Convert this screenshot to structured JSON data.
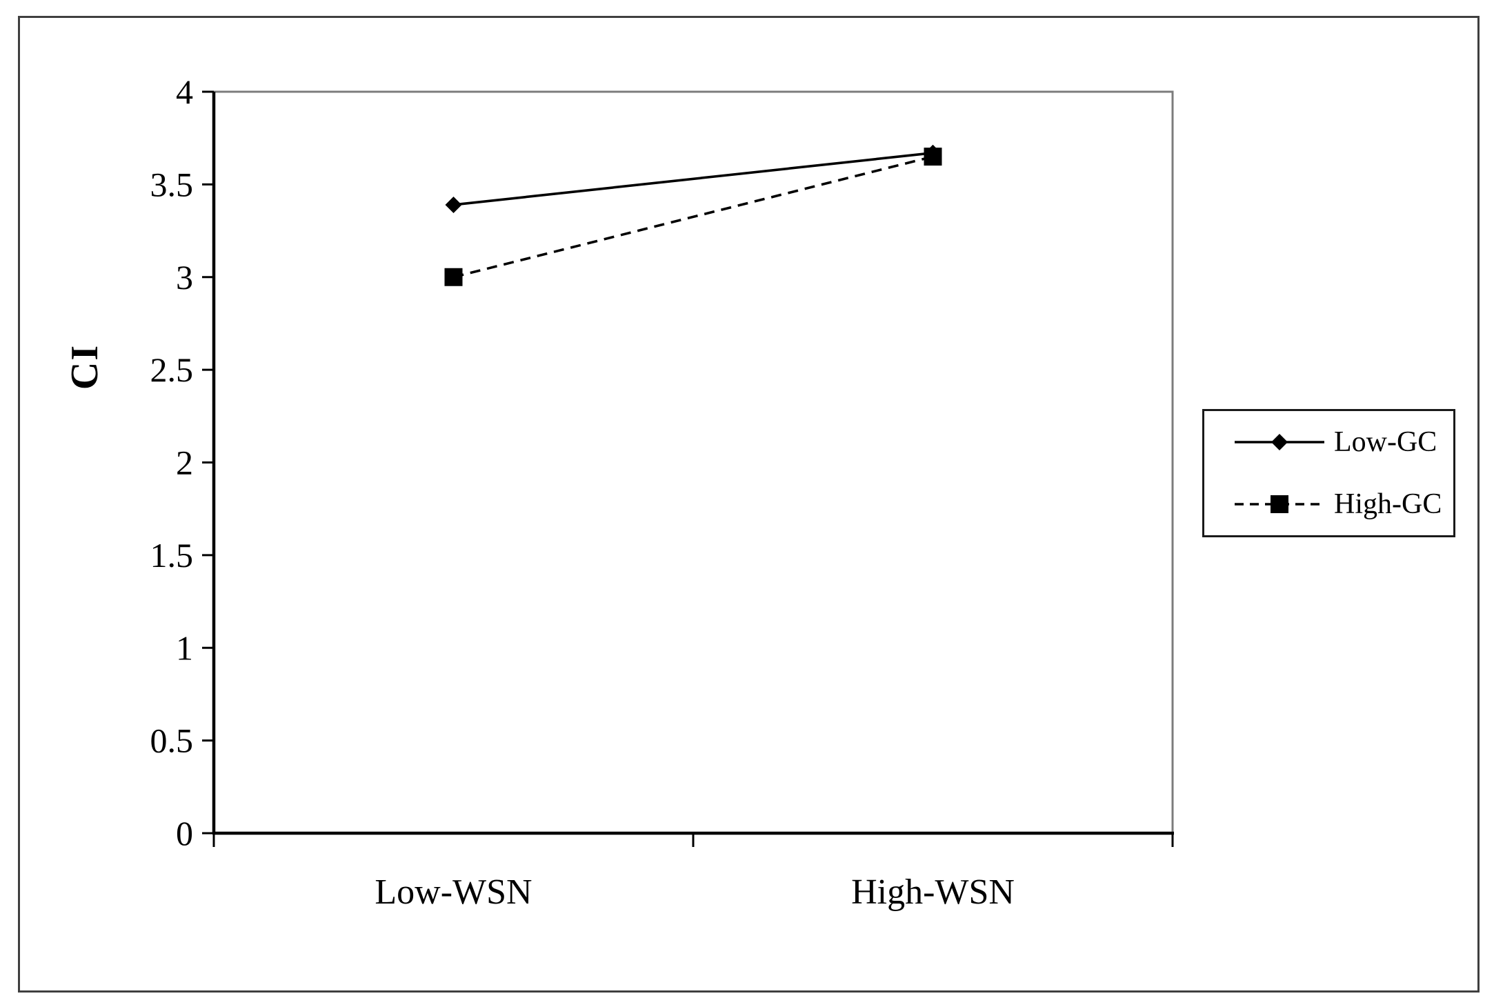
{
  "figure": {
    "background": "#ffffff",
    "frame_color": "#3f3f3f",
    "axis_color": "#000000",
    "plot_border_color": "#7c7c7c",
    "text_color": "#000000"
  },
  "chart_data": {
    "type": "line",
    "title": "",
    "categories": [
      "Low-WSN",
      "High-WSN"
    ],
    "series": [
      {
        "name": "Low-GC",
        "values": [
          3.39,
          3.67
        ],
        "marker": "diamond",
        "line_style": "solid",
        "color": "#000000"
      },
      {
        "name": "High-GC",
        "values": [
          3.0,
          3.65
        ],
        "marker": "square",
        "line_style": "dashed",
        "color": "#000000"
      }
    ],
    "xlabel": "",
    "ylabel": "CI",
    "ylim": [
      0,
      4
    ],
    "yticks": [
      0,
      0.5,
      1,
      1.5,
      2,
      2.5,
      3,
      3.5,
      4
    ],
    "grid": false,
    "legend_position": "right-middle"
  }
}
